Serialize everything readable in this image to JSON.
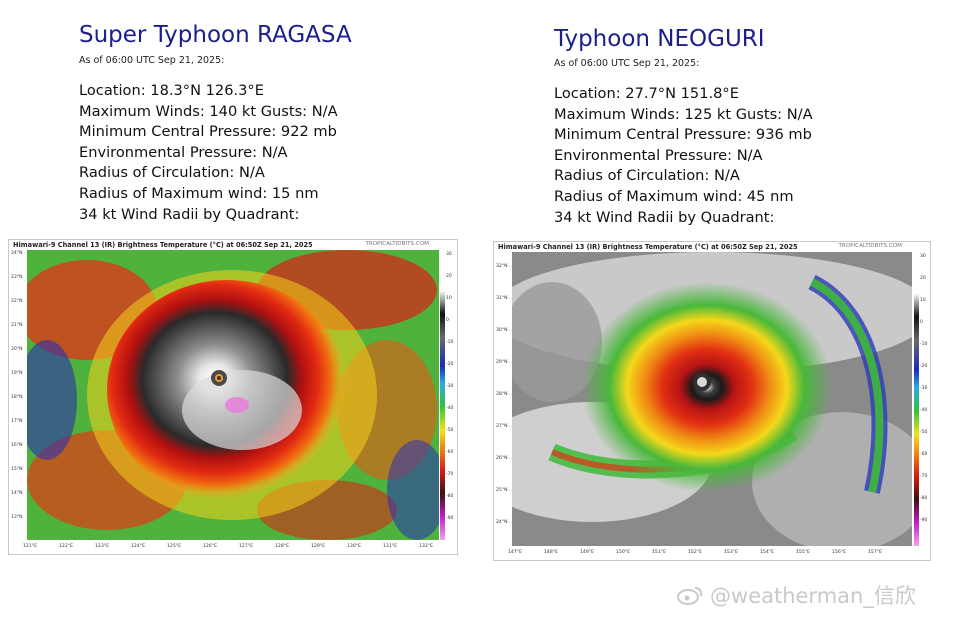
{
  "left": {
    "title": "Super Typhoon RAGASA",
    "as_of": "As of 06:00 UTC Sep 21, 2025:",
    "lines": [
      "Location: 18.3°N 126.3°E",
      "Maximum Winds: 140 kt  Gusts: N/A",
      "Minimum Central Pressure: 922 mb",
      "Environmental Pressure: N/A",
      "Radius of Circulation: N/A",
      "Radius of Maximum wind: 15 nm",
      "34 kt Wind Radii by Quadrant:"
    ],
    "image": {
      "header": "Himawari-9 Channel 13 (IR) Brightness Temperature (°C) at 06:50Z Sep 21, 2025",
      "source": "TROPICALTIDBITS.COM",
      "x_ticks": [
        "121°E",
        "122°E",
        "123°E",
        "124°E",
        "125°E",
        "126°E",
        "127°E",
        "128°E",
        "129°E",
        "130°E",
        "131°E",
        "132°E"
      ],
      "y_ticks": [
        "24°N",
        "23°N",
        "22°N",
        "21°N",
        "20°N",
        "19°N",
        "18°N",
        "17°N",
        "16°N",
        "15°N",
        "14°N",
        "13°N"
      ],
      "cbar_ticks": [
        "30",
        "20",
        "10",
        "0",
        "-10",
        "-20",
        "-30",
        "-40",
        "-50",
        "-60",
        "-70",
        "-80",
        "-90"
      ]
    }
  },
  "right": {
    "title": "Typhoon NEOGURI",
    "as_of": "As of 06:00 UTC Sep 21, 2025:",
    "lines": [
      "Location: 27.7°N 151.8°E",
      "Maximum Winds: 125 kt  Gusts: N/A",
      "Minimum Central Pressure: 936 mb",
      "Environmental Pressure: N/A",
      "Radius of Circulation: N/A",
      "Radius of Maximum wind: 45 nm",
      "34 kt Wind Radii by Quadrant:"
    ],
    "image": {
      "header": "Himawari-9 Channel 13 (IR) Brightness Temperature (°C) at 06:50Z Sep 21, 2025",
      "source": "TROPICALTIDBITS.COM",
      "x_ticks": [
        "147°E",
        "148°E",
        "149°E",
        "150°E",
        "151°E",
        "152°E",
        "153°E",
        "154°E",
        "155°E",
        "156°E",
        "157°E"
      ],
      "y_ticks": [
        "32°N",
        "31°N",
        "30°N",
        "29°N",
        "28°N",
        "27°N",
        "26°N",
        "25°N",
        "24°N"
      ],
      "cbar_ticks": [
        "30",
        "20",
        "10",
        "0",
        "-10",
        "-20",
        "-30",
        "-40",
        "-50",
        "-60",
        "-70",
        "-80",
        "-90"
      ]
    }
  },
  "watermark": "@weatherman_信欣",
  "icons": {
    "watermark_icon": "weibo-logo-icon"
  }
}
